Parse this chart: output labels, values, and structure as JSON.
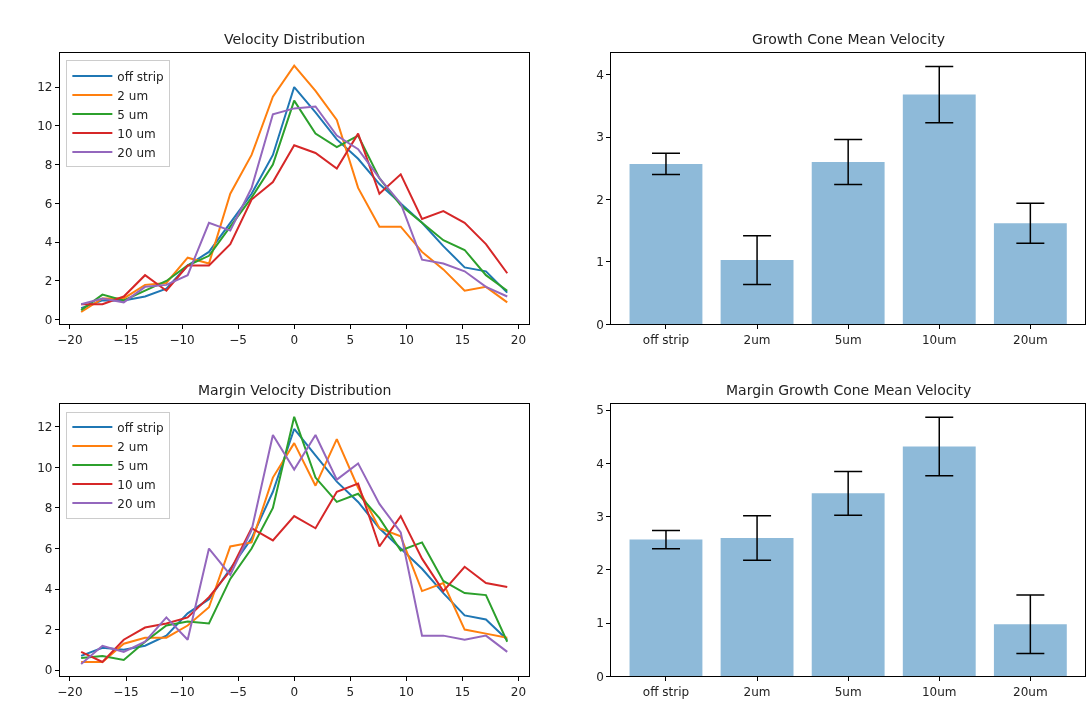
{
  "chart_data": [
    {
      "type": "line",
      "title": "Velocity Distribution",
      "legend": "top left",
      "xlim": [
        -20.9,
        20.9
      ],
      "ylim": [
        -0.235,
        13.735
      ],
      "xticks": [
        {
          "value": -20,
          "label": "−20"
        },
        {
          "value": -15,
          "label": "−15"
        },
        {
          "value": -10,
          "label": "−10"
        },
        {
          "value": -5,
          "label": "−5"
        },
        0,
        5,
        10,
        15,
        20
      ],
      "yticks": [
        0,
        2,
        4,
        6,
        8,
        10,
        12
      ],
      "x": [
        -19,
        -17.1,
        -15.2,
        -13.3,
        -11.4,
        -9.5,
        -7.6,
        -5.7,
        -3.8,
        -1.9,
        0,
        1.9,
        3.8,
        5.7,
        7.6,
        9.5,
        11.4,
        13.3,
        15.2,
        17.1,
        19
      ],
      "series": [
        {
          "name": "off strip",
          "color": "#1f77b4",
          "values": [
            0.6,
            1.0,
            1.0,
            1.2,
            1.6,
            2.8,
            3.5,
            5.0,
            6.5,
            8.5,
            12.0,
            10.7,
            9.3,
            8.3,
            7.0,
            6.0,
            5.0,
            3.8,
            2.7,
            2.5,
            1.4
          ]
        },
        {
          "name": "2 um",
          "color": "#ff7f0e",
          "values": [
            0.4,
            1.1,
            1.1,
            1.8,
            1.9,
            3.2,
            2.9,
            6.5,
            8.5,
            11.5,
            13.1,
            11.8,
            10.3,
            6.8,
            4.8,
            4.8,
            3.5,
            2.6,
            1.5,
            1.7,
            0.9
          ]
        },
        {
          "name": "5 um",
          "color": "#2ca02c",
          "values": [
            0.5,
            1.3,
            1.0,
            1.5,
            2.0,
            2.8,
            3.3,
            4.8,
            6.3,
            8.0,
            11.3,
            9.6,
            8.9,
            9.5,
            7.3,
            5.9,
            5.0,
            4.1,
            3.6,
            2.3,
            1.5
          ]
        },
        {
          "name": "10 um",
          "color": "#d62728",
          "values": [
            0.8,
            0.8,
            1.2,
            2.3,
            1.5,
            2.8,
            2.8,
            3.9,
            6.2,
            7.1,
            9.0,
            8.6,
            7.8,
            9.6,
            6.5,
            7.5,
            5.2,
            5.6,
            5.0,
            3.9,
            2.4
          ]
        },
        {
          "name": "20 um",
          "color": "#9467bd",
          "values": [
            0.8,
            1.1,
            0.9,
            1.7,
            1.8,
            2.3,
            5.0,
            4.6,
            6.8,
            10.6,
            10.9,
            11.0,
            9.5,
            8.8,
            7.3,
            6.0,
            3.1,
            2.9,
            2.5,
            1.7,
            1.2
          ]
        }
      ]
    },
    {
      "type": "bar",
      "title": "Growth Cone Mean Velocity",
      "ylim": [
        0,
        4.34
      ],
      "yticks": [
        0,
        1,
        2,
        3,
        4
      ],
      "categories": [
        "off strip",
        "2um",
        "5um",
        "10um",
        "20um"
      ],
      "values": [
        2.57,
        1.03,
        2.6,
        3.68,
        1.62
      ],
      "errors": [
        0.17,
        0.39,
        0.36,
        0.45,
        0.32
      ],
      "color": "#8ebad9"
    },
    {
      "type": "line",
      "title": "Margin Velocity Distribution",
      "legend": "top left",
      "xlim": [
        -20.9,
        20.9
      ],
      "ylim": [
        -0.31,
        13.11
      ],
      "xticks": [
        {
          "value": -20,
          "label": "−20"
        },
        {
          "value": -15,
          "label": "−15"
        },
        {
          "value": -10,
          "label": "−10"
        },
        {
          "value": -5,
          "label": "−5"
        },
        0,
        5,
        10,
        15,
        20
      ],
      "yticks": [
        0,
        2,
        4,
        6,
        8,
        10,
        12
      ],
      "x": [
        -19,
        -17.1,
        -15.2,
        -13.3,
        -11.4,
        -9.5,
        -7.6,
        -5.7,
        -3.8,
        -1.9,
        0,
        1.9,
        3.8,
        5.7,
        7.6,
        9.5,
        11.4,
        13.3,
        15.2,
        17.1,
        19
      ],
      "series": [
        {
          "name": "off strip",
          "color": "#1f77b4",
          "values": [
            0.7,
            1.1,
            1.0,
            1.2,
            1.7,
            2.8,
            3.5,
            5.0,
            6.5,
            8.8,
            11.9,
            10.6,
            9.3,
            8.3,
            7.0,
            6.0,
            5.0,
            3.8,
            2.7,
            2.5,
            1.5
          ]
        },
        {
          "name": "2 um",
          "color": "#ff7f0e",
          "values": [
            0.4,
            0.4,
            1.3,
            1.6,
            1.6,
            2.2,
            3.1,
            6.1,
            6.3,
            9.5,
            11.2,
            9.1,
            11.4,
            9.0,
            7.0,
            6.6,
            3.9,
            4.3,
            2.0,
            1.8,
            1.6
          ]
        },
        {
          "name": "5 um",
          "color": "#2ca02c",
          "values": [
            0.6,
            0.7,
            0.5,
            1.4,
            2.2,
            2.4,
            2.3,
            4.5,
            6.0,
            8.0,
            12.5,
            9.5,
            8.3,
            8.7,
            7.5,
            5.9,
            6.3,
            4.4,
            3.8,
            3.7,
            1.4
          ]
        },
        {
          "name": "10 um",
          "color": "#d62728",
          "values": [
            0.9,
            0.4,
            1.5,
            2.1,
            2.3,
            2.6,
            3.6,
            4.9,
            7.0,
            6.4,
            7.6,
            7.0,
            8.8,
            9.2,
            6.1,
            7.6,
            5.5,
            3.9,
            5.1,
            4.3,
            4.1
          ]
        },
        {
          "name": "20 um",
          "color": "#9467bd",
          "values": [
            0.3,
            1.2,
            0.9,
            1.4,
            2.6,
            1.5,
            6.0,
            4.7,
            6.9,
            11.6,
            9.9,
            11.6,
            9.4,
            10.2,
            8.2,
            6.8,
            1.7,
            1.7,
            1.5,
            1.7,
            0.9
          ]
        }
      ]
    },
    {
      "type": "bar",
      "title": "Margin Growth Cone Mean Velocity",
      "ylim": [
        0,
        5.11
      ],
      "yticks": [
        0,
        1,
        2,
        3,
        4,
        5
      ],
      "categories": [
        "off strip",
        "2um",
        "5um",
        "10um",
        "20um"
      ],
      "values": [
        2.57,
        2.6,
        3.44,
        4.32,
        0.98
      ],
      "errors": [
        0.17,
        0.42,
        0.41,
        0.55,
        0.55
      ],
      "color": "#8ebad9"
    }
  ]
}
